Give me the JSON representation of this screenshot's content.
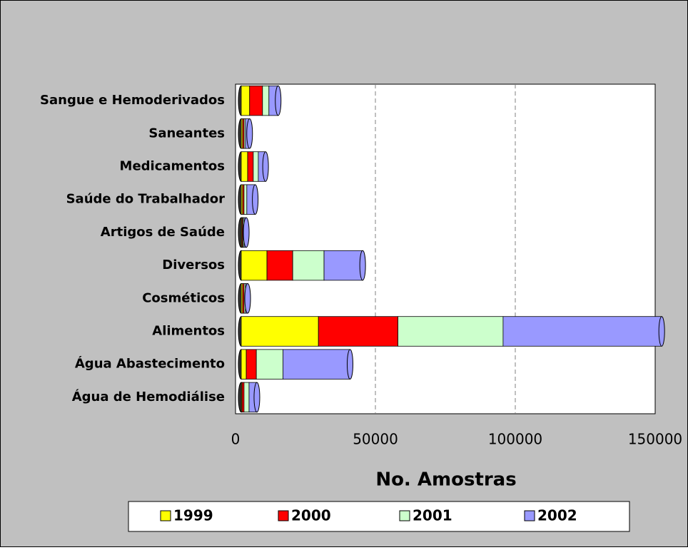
{
  "chart_data": {
    "type": "bar",
    "orientation": "horizontal",
    "stacked": true,
    "x_label": "No. Amostras",
    "categories": [
      "Água de Hemodiálise",
      "Água Abastecimento",
      "Alimentos",
      "Cosméticos",
      "Diversos",
      "Artigos de Saúde",
      "Saúde do Trabalhador",
      "Medicamentos",
      "Saneantes",
      "Sangue e Hemoderivados"
    ],
    "series": [
      {
        "name": "1999",
        "color": "#ffff00",
        "values": [
          300,
          1800,
          27600,
          500,
          9200,
          300,
          500,
          2300,
          500,
          3000
        ]
      },
      {
        "name": "2000",
        "color": "#ff0000",
        "values": [
          700,
          3600,
          28400,
          500,
          9200,
          300,
          500,
          2000,
          500,
          4600
        ]
      },
      {
        "name": "2001",
        "color": "#ccffcc",
        "values": [
          1800,
          9500,
          37600,
          500,
          11200,
          400,
          1000,
          1800,
          500,
          2300
        ]
      },
      {
        "name": "2002",
        "color": "#9999ff",
        "values": [
          2800,
          24000,
          56700,
          800,
          13800,
          800,
          3000,
          2600,
          1500,
          3300
        ]
      }
    ],
    "xlim": [
      0,
      150000
    ],
    "xticks": [
      0,
      50000,
      100000,
      150000
    ],
    "grid": true,
    "legend": "bottom"
  }
}
